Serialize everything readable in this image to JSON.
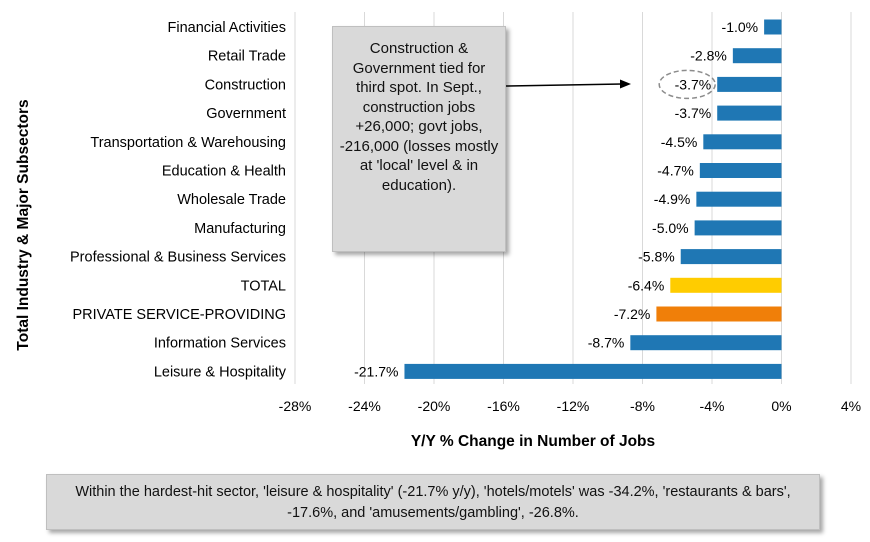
{
  "chart_data": {
    "type": "bar",
    "orientation": "horizontal",
    "ylabel": "Total Industry & Major Subsectors",
    "xlabel": "Y/Y % Change in Number of Jobs",
    "xlim": [
      -28,
      4
    ],
    "xticks": [
      "-28%",
      "-24%",
      "-20%",
      "-16%",
      "-12%",
      "-8%",
      "-4%",
      "0%",
      "4%"
    ],
    "tick_values": [
      -28,
      -24,
      -20,
      -16,
      -12,
      -8,
      -4,
      0,
      4
    ],
    "grid": "vertical",
    "categories": [
      "Financial Activities",
      "Retail Trade",
      "Construction",
      "Government",
      "Transportation & Warehousing",
      "Education & Health",
      "Wholesale Trade",
      "Manufacturing",
      "Professional & Business Services",
      "TOTAL",
      "PRIVATE SERVICE-PROVIDING",
      "Information Services",
      "Leisure & Hospitality"
    ],
    "values": [
      -1.0,
      -2.8,
      -3.7,
      -3.7,
      -4.5,
      -4.7,
      -4.9,
      -5.0,
      -5.8,
      -6.4,
      -7.2,
      -8.7,
      -21.7
    ],
    "data_labels": [
      "-1.0%",
      "-2.8%",
      "-3.7%",
      "-3.7%",
      "-4.5%",
      "-4.7%",
      "-4.9%",
      "-5.0%",
      "-5.8%",
      "-6.4%",
      "-7.2%",
      "-8.7%",
      "-21.7%"
    ],
    "bar_colors": [
      "#1f77b4",
      "#1f77b4",
      "#1f77b4",
      "#1f77b4",
      "#1f77b4",
      "#1f77b4",
      "#1f77b4",
      "#1f77b4",
      "#1f77b4",
      "#ffcc00",
      "#f07f09",
      "#1f77b4",
      "#1f77b4"
    ],
    "highlight_label_index": 2
  },
  "colors": {
    "default_bar": "#1f77b4",
    "total_bar": "#ffcc00",
    "private_bar": "#f07f09"
  },
  "callout": {
    "text": "Construction & Government tied for third spot. In Sept., construction jobs +26,000; govt jobs, -216,000 (losses mostly at 'local' level & in education)."
  },
  "footnote": {
    "text": "Within the hardest-hit sector, 'leisure & hospitality' (-21.7% y/y), 'hotels/motels' was -34.2%, 'restaurants & bars', -17.6%, and 'amusements/gambling', -26.8%."
  }
}
